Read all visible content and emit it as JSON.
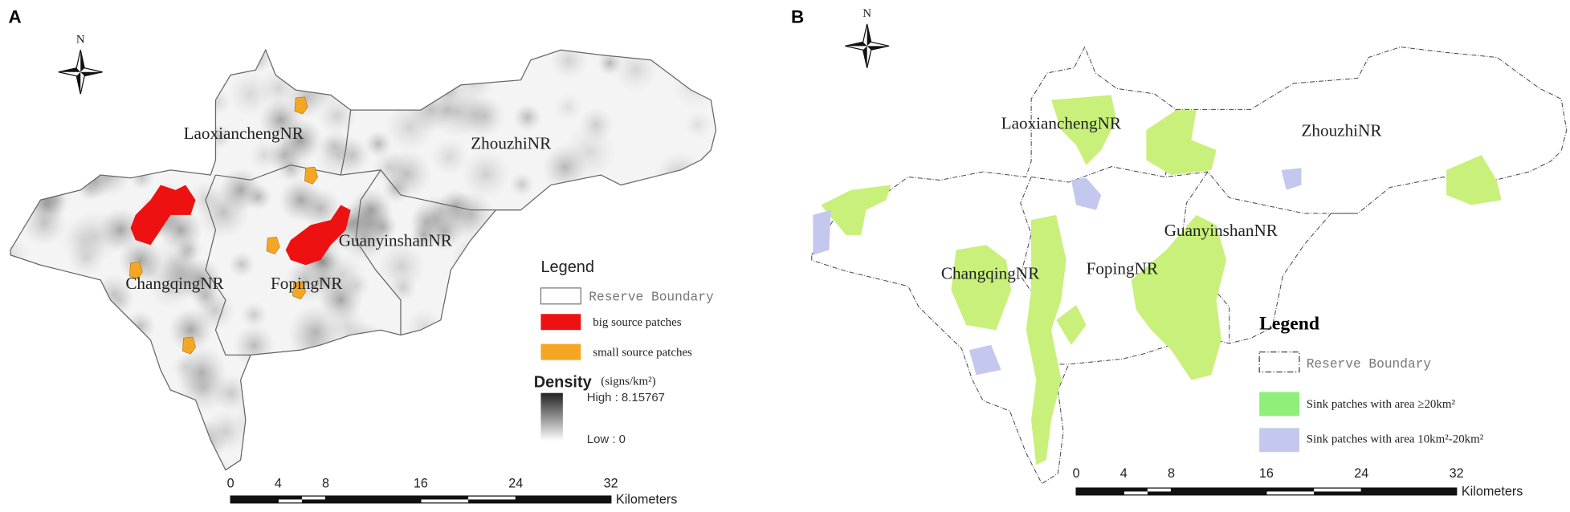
{
  "panels": [
    {
      "label": "A",
      "north": "N",
      "regions": [
        "LaoxianchengNR",
        "ZhouzhiNR",
        "GuanyinshanNR",
        "FopingNR",
        "ChangqingNR"
      ],
      "legend": {
        "title": "Legend",
        "items": [
          "Reserve Boundary",
          "big source patches",
          "small source patches"
        ],
        "density_title": "Density",
        "density_unit": "(signs/km²)",
        "density_high": "High : 8.15767",
        "density_low": "Low : 0"
      },
      "scale": {
        "ticks": [
          0,
          4,
          8,
          16,
          24,
          32
        ],
        "unit": "Kilometers"
      }
    },
    {
      "label": "B",
      "north": "N",
      "regions": [
        "LaoxianchengNR",
        "ZhouzhiNR",
        "GuanyinshanNR",
        "FopingNR",
        "ChangqingNR"
      ],
      "legend": {
        "title": "Legend",
        "items": [
          "Reserve Boundary",
          "Sink patches with area ≥20km²",
          "Sink patches with area 10km²-20km²"
        ]
      },
      "scale": {
        "ticks": [
          0,
          4,
          8,
          16,
          24,
          32
        ],
        "unit": "Kilometers"
      }
    }
  ]
}
